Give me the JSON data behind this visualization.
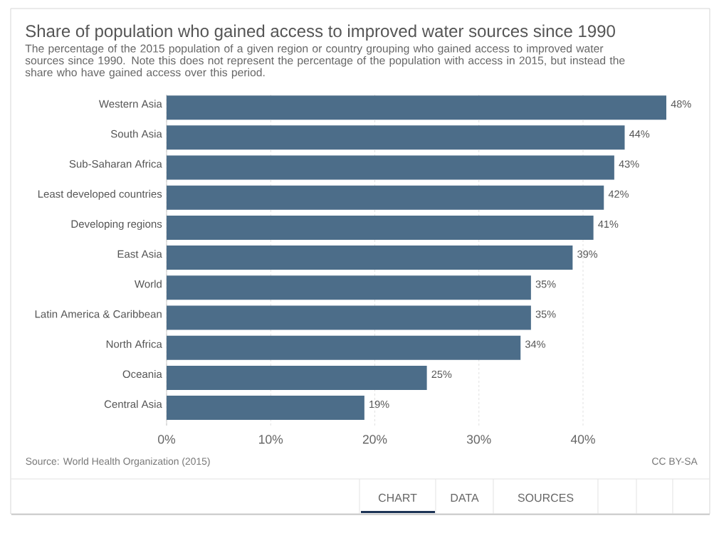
{
  "chart_data": {
    "type": "bar",
    "orientation": "horizontal",
    "title": "Share of population who gained access to improved water sources since 1990",
    "subtitle": "The percentage of the 2015 population of a given region or country grouping who gained access to improved water sources since 1990. Note this does not represent the percentage of the population with access in 2015, but instead the share who have gained access over this period.",
    "categories": [
      "Western Asia",
      "South Asia",
      "Sub-Saharan Africa",
      "Least developed countries",
      "Developing regions",
      "East Asia",
      "World",
      "Latin America & Caribbean",
      "North Africa",
      "Oceania",
      "Central Asia"
    ],
    "values": [
      48,
      44,
      43,
      42,
      41,
      39,
      35,
      35,
      34,
      25,
      19
    ],
    "value_labels": [
      "48%",
      "44%",
      "43%",
      "42%",
      "41%",
      "39%",
      "35%",
      "35%",
      "34%",
      "25%",
      "19%"
    ],
    "color": "#4c6d89",
    "xlim": [
      0,
      48
    ],
    "xticks": [
      {
        "value": 0,
        "label": "0%"
      },
      {
        "value": 10,
        "label": "10%"
      },
      {
        "value": 20,
        "label": "20%"
      },
      {
        "value": 30,
        "label": "30%"
      },
      {
        "value": 40,
        "label": "40%"
      }
    ],
    "grid": "x",
    "annotations": [
      "Source: World Health Organization (2015)",
      "CC BY-SA",
      "CHART",
      "DATA",
      "SOURCES"
    ]
  }
}
